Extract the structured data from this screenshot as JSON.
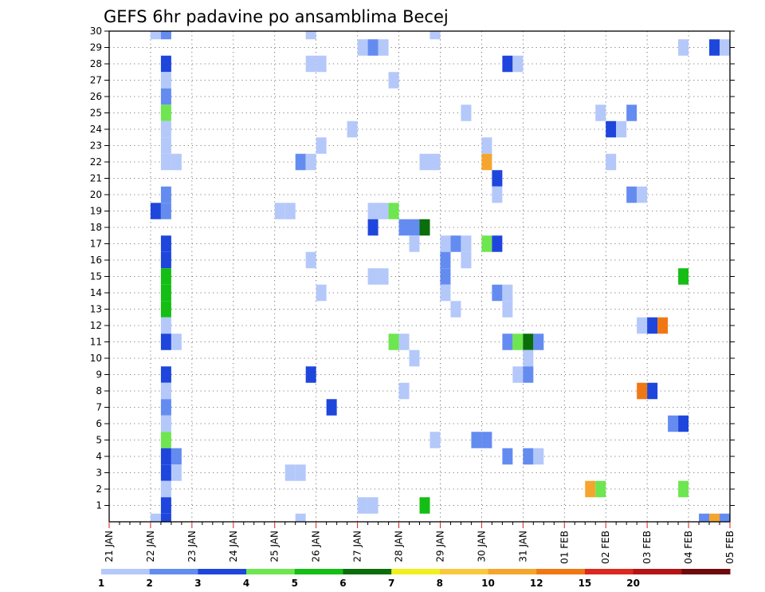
{
  "chart_data": {
    "type": "heatmap",
    "title": "GEFS 6hr padavine po ansamblima Becej",
    "xlabel": "",
    "ylabel": "",
    "x_tick_labels": [
      "21 JAN",
      "22 JAN",
      "23 JAN",
      "24 JAN",
      "25 JAN",
      "26 JAN",
      "27 JAN",
      "28 JAN",
      "29 JAN",
      "30 JAN",
      "31 JAN",
      "01 FEB",
      "02 FEB",
      "03 FEB",
      "04 FEB",
      "05 FEB"
    ],
    "y_tick_labels": [
      "1",
      "2",
      "3",
      "4",
      "5",
      "6",
      "7",
      "8",
      "9",
      "10",
      "11",
      "12",
      "13",
      "14",
      "15",
      "16",
      "17",
      "18",
      "19",
      "20",
      "21",
      "22",
      "23",
      "24",
      "25",
      "26",
      "27",
      "28",
      "29",
      "30"
    ],
    "x_range": [
      "21 JAN 00",
      "05 FEB 00"
    ],
    "y_range": [
      0,
      30
    ],
    "time_step_hours": 6,
    "grid": "dotted",
    "legend": {
      "placement": "bottom",
      "bins": [
        {
          "label": "1",
          "color": "#b4c8fa"
        },
        {
          "label": "2",
          "color": "#648cf0"
        },
        {
          "label": "3",
          "color": "#1e46dc"
        },
        {
          "label": "4",
          "color": "#6ee650"
        },
        {
          "label": "5",
          "color": "#14be14"
        },
        {
          "label": "6",
          "color": "#0a6e0a"
        },
        {
          "label": "7",
          "color": "#f0f01e"
        },
        {
          "label": "8",
          "color": "#fac83c"
        },
        {
          "label": "10",
          "color": "#f5a52d"
        },
        {
          "label": "12",
          "color": "#f07814"
        },
        {
          "label": "15",
          "color": "#dc281e"
        },
        {
          "label": "20",
          "color": "#b41414"
        },
        {
          "label": "",
          "color": "#6e0a0a"
        }
      ]
    },
    "cells": [
      {
        "member": 30,
        "time": "22 JAN 00",
        "class": 1
      },
      {
        "member": 30,
        "time": "22 JAN 06",
        "class": 2
      },
      {
        "member": 30,
        "time": "25 JAN 18",
        "class": 1
      },
      {
        "member": 30,
        "time": "28 JAN 18",
        "class": 1
      },
      {
        "member": 29,
        "time": "27 JAN 00",
        "class": 1
      },
      {
        "member": 29,
        "time": "27 JAN 06",
        "class": 2
      },
      {
        "member": 29,
        "time": "27 JAN 12",
        "class": 1
      },
      {
        "member": 29,
        "time": "03 FEB 18",
        "class": 1
      },
      {
        "member": 29,
        "time": "04 FEB 12",
        "class": 3
      },
      {
        "member": 29,
        "time": "04 FEB 18",
        "class": 1
      },
      {
        "member": 28,
        "time": "22 JAN 06",
        "class": 3
      },
      {
        "member": 28,
        "time": "25 JAN 18",
        "class": 1
      },
      {
        "member": 28,
        "time": "26 JAN 00",
        "class": 1
      },
      {
        "member": 28,
        "time": "30 JAN 12",
        "class": 3
      },
      {
        "member": 28,
        "time": "30 JAN 18",
        "class": 1
      },
      {
        "member": 27,
        "time": "22 JAN 06",
        "class": 1
      },
      {
        "member": 27,
        "time": "27 JAN 18",
        "class": 1
      },
      {
        "member": 26,
        "time": "22 JAN 06",
        "class": 2
      },
      {
        "member": 25,
        "time": "22 JAN 06",
        "class": 4
      },
      {
        "member": 25,
        "time": "29 JAN 12",
        "class": 1
      },
      {
        "member": 25,
        "time": "01 FEB 18",
        "class": 1
      },
      {
        "member": 25,
        "time": "02 FEB 12",
        "class": 2
      },
      {
        "member": 24,
        "time": "22 JAN 06",
        "class": 1
      },
      {
        "member": 24,
        "time": "26 JAN 18",
        "class": 1
      },
      {
        "member": 24,
        "time": "02 FEB 00",
        "class": 3
      },
      {
        "member": 24,
        "time": "02 FEB 06",
        "class": 1
      },
      {
        "member": 23,
        "time": "22 JAN 06",
        "class": 1
      },
      {
        "member": 23,
        "time": "26 JAN 00",
        "class": 1
      },
      {
        "member": 23,
        "time": "30 JAN 00",
        "class": 1
      },
      {
        "member": 22,
        "time": "22 JAN 06",
        "class": 1
      },
      {
        "member": 22,
        "time": "22 JAN 12",
        "class": 1
      },
      {
        "member": 22,
        "time": "25 JAN 12",
        "class": 2
      },
      {
        "member": 22,
        "time": "25 JAN 18",
        "class": 1
      },
      {
        "member": 22,
        "time": "28 JAN 12",
        "class": 1
      },
      {
        "member": 22,
        "time": "28 JAN 18",
        "class": 1
      },
      {
        "member": 22,
        "time": "30 JAN 00",
        "class": 10
      },
      {
        "member": 22,
        "time": "02 FEB 00",
        "class": 1
      },
      {
        "member": 21,
        "time": "30 JAN 06",
        "class": 3
      },
      {
        "member": 20,
        "time": "22 JAN 06",
        "class": 2
      },
      {
        "member": 20,
        "time": "30 JAN 06",
        "class": 1
      },
      {
        "member": 20,
        "time": "02 FEB 12",
        "class": 2
      },
      {
        "member": 20,
        "time": "02 FEB 18",
        "class": 1
      },
      {
        "member": 19,
        "time": "22 JAN 00",
        "class": 3
      },
      {
        "member": 19,
        "time": "22 JAN 06",
        "class": 2
      },
      {
        "member": 19,
        "time": "25 JAN 00",
        "class": 1
      },
      {
        "member": 19,
        "time": "25 JAN 06",
        "class": 1
      },
      {
        "member": 19,
        "time": "27 JAN 06",
        "class": 1
      },
      {
        "member": 19,
        "time": "27 JAN 12",
        "class": 1
      },
      {
        "member": 19,
        "time": "27 JAN 18",
        "class": 4
      },
      {
        "member": 18,
        "time": "27 JAN 06",
        "class": 3
      },
      {
        "member": 18,
        "time": "28 JAN 00",
        "class": 2
      },
      {
        "member": 18,
        "time": "28 JAN 06",
        "class": 2
      },
      {
        "member": 18,
        "time": "28 JAN 12",
        "class": 6
      },
      {
        "member": 17,
        "time": "22 JAN 06",
        "class": 3
      },
      {
        "member": 17,
        "time": "28 JAN 06",
        "class": 1
      },
      {
        "member": 17,
        "time": "29 JAN 00",
        "class": 1
      },
      {
        "member": 17,
        "time": "29 JAN 06",
        "class": 2
      },
      {
        "member": 17,
        "time": "29 JAN 12",
        "class": 1
      },
      {
        "member": 17,
        "time": "30 JAN 00",
        "class": 4
      },
      {
        "member": 17,
        "time": "30 JAN 06",
        "class": 3
      },
      {
        "member": 16,
        "time": "22 JAN 06",
        "class": 3
      },
      {
        "member": 16,
        "time": "25 JAN 18",
        "class": 1
      },
      {
        "member": 16,
        "time": "29 JAN 00",
        "class": 2
      },
      {
        "member": 16,
        "time": "29 JAN 12",
        "class": 1
      },
      {
        "member": 15,
        "time": "22 JAN 06",
        "class": 5
      },
      {
        "member": 15,
        "time": "27 JAN 06",
        "class": 1
      },
      {
        "member": 15,
        "time": "27 JAN 12",
        "class": 1
      },
      {
        "member": 15,
        "time": "29 JAN 00",
        "class": 2
      },
      {
        "member": 15,
        "time": "03 FEB 18",
        "class": 5
      },
      {
        "member": 14,
        "time": "22 JAN 06",
        "class": 5
      },
      {
        "member": 14,
        "time": "26 JAN 00",
        "class": 1
      },
      {
        "member": 14,
        "time": "29 JAN 00",
        "class": 1
      },
      {
        "member": 14,
        "time": "30 JAN 06",
        "class": 2
      },
      {
        "member": 14,
        "time": "30 JAN 12",
        "class": 1
      },
      {
        "member": 13,
        "time": "22 JAN 06",
        "class": 5
      },
      {
        "member": 13,
        "time": "29 JAN 06",
        "class": 1
      },
      {
        "member": 13,
        "time": "30 JAN 12",
        "class": 1
      },
      {
        "member": 12,
        "time": "22 JAN 06",
        "class": 1
      },
      {
        "member": 12,
        "time": "02 FEB 18",
        "class": 1
      },
      {
        "member": 12,
        "time": "03 FEB 00",
        "class": 3
      },
      {
        "member": 12,
        "time": "03 FEB 06",
        "class": 12
      },
      {
        "member": 11,
        "time": "22 JAN 06",
        "class": 3
      },
      {
        "member": 11,
        "time": "22 JAN 12",
        "class": 1
      },
      {
        "member": 11,
        "time": "27 JAN 18",
        "class": 4
      },
      {
        "member": 11,
        "time": "28 JAN 00",
        "class": 1
      },
      {
        "member": 11,
        "time": "30 JAN 12",
        "class": 2
      },
      {
        "member": 11,
        "time": "30 JAN 18",
        "class": 4
      },
      {
        "member": 11,
        "time": "31 JAN 00",
        "class": 6
      },
      {
        "member": 11,
        "time": "31 JAN 06",
        "class": 2
      },
      {
        "member": 10,
        "time": "28 JAN 06",
        "class": 1
      },
      {
        "member": 10,
        "time": "31 JAN 00",
        "class": 1
      },
      {
        "member": 9,
        "time": "22 JAN 06",
        "class": 3
      },
      {
        "member": 9,
        "time": "25 JAN 18",
        "class": 3
      },
      {
        "member": 9,
        "time": "30 JAN 18",
        "class": 1
      },
      {
        "member": 9,
        "time": "31 JAN 00",
        "class": 2
      },
      {
        "member": 8,
        "time": "22 JAN 06",
        "class": 1
      },
      {
        "member": 8,
        "time": "28 JAN 00",
        "class": 1
      },
      {
        "member": 8,
        "time": "02 FEB 18",
        "class": 12
      },
      {
        "member": 8,
        "time": "03 FEB 00",
        "class": 3
      },
      {
        "member": 7,
        "time": "22 JAN 06",
        "class": 2
      },
      {
        "member": 7,
        "time": "26 JAN 06",
        "class": 3
      },
      {
        "member": 6,
        "time": "22 JAN 06",
        "class": 1
      },
      {
        "member": 6,
        "time": "03 FEB 12",
        "class": 2
      },
      {
        "member": 6,
        "time": "03 FEB 18",
        "class": 3
      },
      {
        "member": 5,
        "time": "22 JAN 06",
        "class": 4
      },
      {
        "member": 5,
        "time": "28 JAN 18",
        "class": 1
      },
      {
        "member": 5,
        "time": "29 JAN 18",
        "class": 2
      },
      {
        "member": 5,
        "time": "30 JAN 00",
        "class": 2
      },
      {
        "member": 4,
        "time": "22 JAN 06",
        "class": 3
      },
      {
        "member": 4,
        "time": "22 JAN 12",
        "class": 2
      },
      {
        "member": 4,
        "time": "30 JAN 12",
        "class": 2
      },
      {
        "member": 4,
        "time": "31 JAN 00",
        "class": 2
      },
      {
        "member": 4,
        "time": "31 JAN 06",
        "class": 1
      },
      {
        "member": 3,
        "time": "22 JAN 06",
        "class": 3
      },
      {
        "member": 3,
        "time": "22 JAN 12",
        "class": 1
      },
      {
        "member": 3,
        "time": "25 JAN 06",
        "class": 1
      },
      {
        "member": 3,
        "time": "25 JAN 12",
        "class": 1
      },
      {
        "member": 2,
        "time": "22 JAN 06",
        "class": 1
      },
      {
        "member": 2,
        "time": "01 FEB 12",
        "class": 10
      },
      {
        "member": 2,
        "time": "01 FEB 18",
        "class": 4
      },
      {
        "member": 2,
        "time": "03 FEB 18",
        "class": 4
      },
      {
        "member": 1,
        "time": "22 JAN 06",
        "class": 3
      },
      {
        "member": 1,
        "time": "27 JAN 00",
        "class": 1
      },
      {
        "member": 1,
        "time": "27 JAN 06",
        "class": 1
      },
      {
        "member": 1,
        "time": "28 JAN 12",
        "class": 5
      },
      {
        "member": 0,
        "time": "22 JAN 00",
        "class": 1
      },
      {
        "member": 0,
        "time": "22 JAN 06",
        "class": 3
      },
      {
        "member": 0,
        "time": "25 JAN 12",
        "class": 1
      },
      {
        "member": 0,
        "time": "04 FEB 06",
        "class": 2
      },
      {
        "member": 0,
        "time": "04 FEB 12",
        "class": 10
      },
      {
        "member": 0,
        "time": "04 FEB 18",
        "class": 2
      }
    ]
  }
}
